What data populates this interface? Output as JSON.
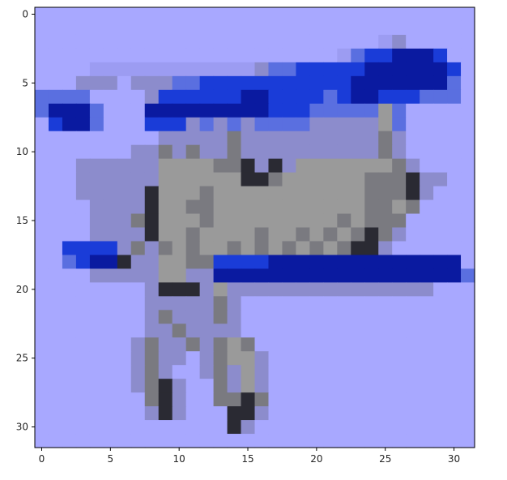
{
  "chart_data": {
    "type": "heatmap",
    "title": "",
    "xlabel": "",
    "ylabel": "",
    "xlim": [
      -0.5,
      31.5
    ],
    "ylim": [
      31.5,
      -0.5
    ],
    "xticks": [
      0,
      5,
      10,
      15,
      20,
      25,
      30
    ],
    "yticks": [
      0,
      5,
      10,
      15,
      20,
      25,
      30
    ],
    "xtick_labels": [
      "0",
      "5",
      "10",
      "15",
      "20",
      "25",
      "30"
    ],
    "ytick_labels": [
      "0",
      "5",
      "10",
      "15",
      "20",
      "25",
      "30"
    ],
    "grid": false,
    "image_size": [
      32,
      32
    ],
    "content": "pixelated 32x32 RGB image of a blue and grey biplane on a lavender background",
    "palette": {
      "L": "#a8a8ff",
      "l": "#9c9cf2",
      "B": "#1a3cd8",
      "D": "#0a1aa0",
      "b": "#5a6fe0",
      "G": "#9a9a9a",
      "g": "#7a7a80",
      "K": "#2a2a33",
      "P": "#8c8ccc"
    },
    "pixels": [
      "LLLLLLLLLLLLLLLLLLLLLLLLLLLLLLLL",
      "LLLLLLLLLLLLLLLLLLLLLLLLLLLLLLLL",
      "LLLLLLLLLLLLLLLLLLLLLLLLLlPLLLLL",
      "LLLLLLLLLLLLLLLLLLLLLLlbBBDDDBLL",
      "LLLLllllllllllllPbbBBBBBDDDDDDBL",
      "LLLPPPLPPPbbBBBBBBBBBBBDDDDDDDbL",
      "bbbbLLLLPBBBBBBDDBBBBbBDDBBBbbbL",
      "bDDDbLLLDDDDDDDDDBBBbbbbbGbLLLLL",
      "LBDDbLLLBBBPbPbPbbbbPPPPPGbLLLLL",
      "LLLLLLLLLPPPPPgPPPPPPPPPPgPLLLLL",
      "LLLLLLLPPgPgPPgPPPPPPPPPPgPLLLLL",
      "LLLPPPPPPGGGGggKPKPGGGGGGGgPLLLL",
      "LLLPPPPPPGGGGGGKKgGGGGGGgggKPPLL",
      "LLLPPPPPKGGGgGGGGGGGGGGGgggKPLLL",
      "LLLLPPPPKGGggGGGGGGGGGGGggGgLLLL",
      "LLLLPPPgKGGGgGGGGGGGGGgGgggLLLLL",
      "LLLLPPPPKGGgGGGGgGGgGgGgKgPLLLLL",
      "LLBBBBPgPgGgGGgGgGgGgGgKKPLLLLLL",
      "LLbBDDKPPGGggBBBBDDDDDDDDDDDDDDL",
      "LLLLPPPPPGGPPDDDDDDDDDDDDDDDDDDb",
      "LLLLLLLLPKKKPGPPPPPPPPPPPPPPPLLL",
      "LLLLLLLLPPPPPgPLLLLLLLLLLLLLLLLL",
      "LLLLLLLLPgPPPgPLLLLLLLLLLLLLLLLL",
      "LLLLLLLLPPgPPPPLLLLLLLLLLLLLLLLL",
      "LLLLLLLPgPPgPgGgLLLLLLLLLLLLLLLL",
      "LLLLLLLPgPPLPgGGPLLLLLLLLLLLLLLL",
      "LLLLLLLPgPLLPgPGPLLLLLLLLLLLLLLL",
      "LLLLLLLPgKPLLgPGPLLLLLLLLLLLLLLL",
      "LLLLLLLLgKPLLggKgLLLLLLLLLLLLLLL",
      "LLLLLLLLPKPLLLKKPLLLLLLLLLLLLLLL",
      "LLLLLLLLLLLLLLKPLLLLLLLLLLLLLLLL",
      "LLLLLLLLLLLLLLLLLLLLLLLLLLLLLLLL"
    ]
  },
  "frame": {
    "spine_color": "#000000",
    "text_color": "#262626"
  }
}
